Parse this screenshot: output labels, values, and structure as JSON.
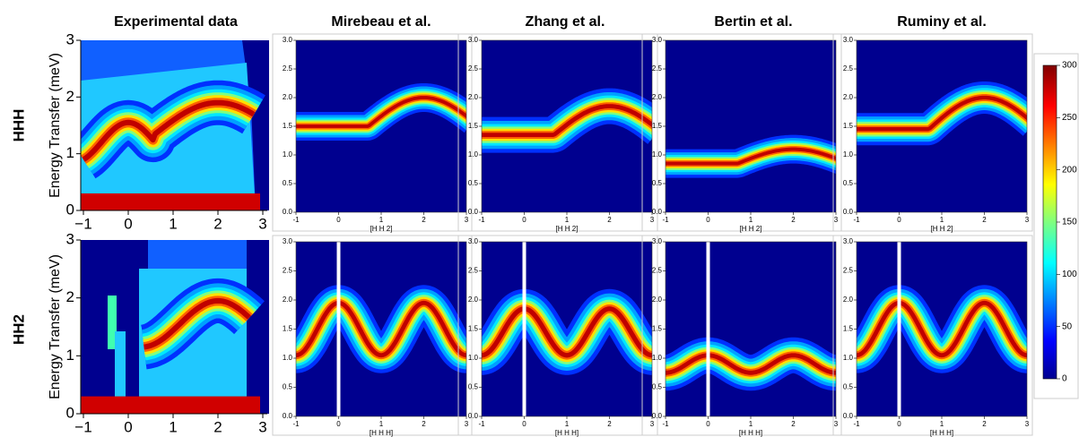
{
  "columns": [
    "Experimental data",
    "Mirebeau et al.",
    "Zhang et al.",
    "Bertin et al.",
    "Ruminy et al."
  ],
  "rows": [
    {
      "label": "HHH",
      "xlabel": "[H H 2]"
    },
    {
      "label": "HH2",
      "xlabel": "[H H H]"
    }
  ],
  "exp_ylabel": "Energy Transfer (meV)",
  "exp_xlim": [
    -1,
    3
  ],
  "exp_ylim": [
    0,
    3
  ],
  "exp_xticks": [
    {
      "value": -1,
      "label": "−1"
    },
    0,
    1,
    2,
    3
  ],
  "exp_yticks": [
    0,
    1,
    2,
    3
  ],
  "model_xlim": [
    -1,
    3
  ],
  "model_ylim": [
    0,
    3
  ],
  "model_xticks": [
    -1,
    0,
    1,
    2,
    3
  ],
  "model_yticks": [
    {
      "value": 0,
      "label": "0.0"
    },
    {
      "value": 0.5,
      "label": "0.5"
    },
    {
      "value": 1,
      "label": "1.0"
    },
    {
      "value": 1.5,
      "label": "1.5"
    },
    {
      "value": 2,
      "label": "2.0"
    },
    {
      "value": 2.5,
      "label": "2.5"
    },
    {
      "value": 3,
      "label": "3.0"
    }
  ],
  "colorbar_lim": [
    0,
    300
  ],
  "colorbar_ticks": [
    0,
    50,
    100,
    150,
    200,
    250,
    300
  ]
}
